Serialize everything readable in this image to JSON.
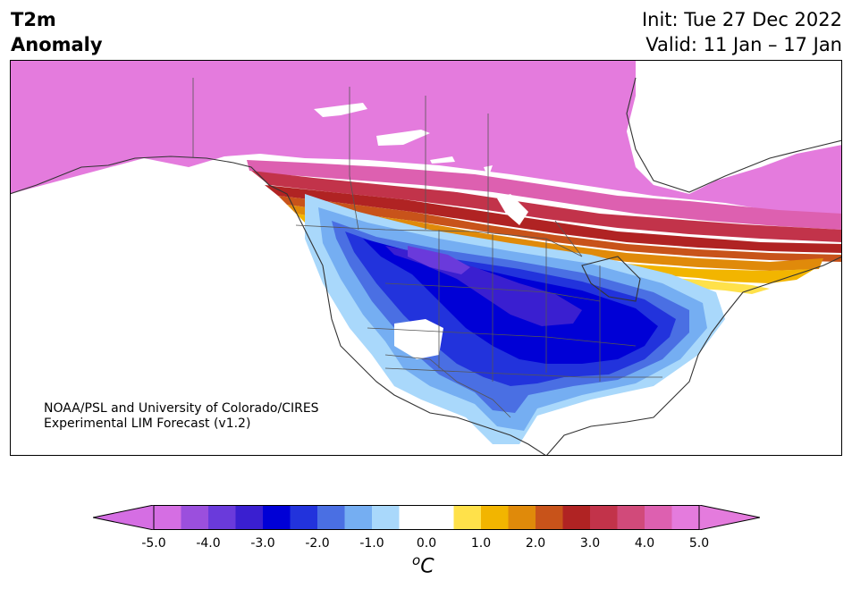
{
  "title": {
    "line1": "T2m",
    "line2": "Anomaly"
  },
  "info": {
    "init": "Init: Tue 27 Dec 2022",
    "valid": "Valid: 11 Jan – 17 Jan"
  },
  "credit": {
    "line1": "NOAA/PSL and University of Colorado/CIRES",
    "line2": "Experimental LIM Forecast (v1.2)"
  },
  "colorbar": {
    "ticks": [
      "-5.0",
      "-4.0",
      "-3.0",
      "-2.0",
      "-1.0",
      "0.0",
      "1.0",
      "2.0",
      "3.0",
      "4.0",
      "5.0"
    ],
    "unit_sup": "o",
    "unit": "C",
    "colors": [
      "#d56ee3",
      "#9b4fdd",
      "#6a3adb",
      "#3a1fd0",
      "#0000d6",
      "#2233dc",
      "#4a6fe3",
      "#75aef2",
      "#a9d8fb",
      "#ffffff",
      "#ffffff",
      "#ffe14a",
      "#f2b500",
      "#e08a0a",
      "#c8531a",
      "#b02323",
      "#c2334a",
      "#d14a7a",
      "#dd60b0",
      "#e47bdd"
    ],
    "under_color": "#d56ee3",
    "over_color": "#e47bdd"
  },
  "map_colors": {
    "land": "#ffffff",
    "ocean": "#ffffff",
    "coast": "#333333"
  }
}
